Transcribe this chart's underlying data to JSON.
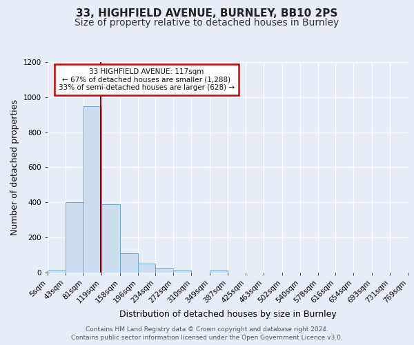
{
  "title": "33, HIGHFIELD AVENUE, BURNLEY, BB10 2PS",
  "subtitle": "Size of property relative to detached houses in Burnley",
  "xlabel": "Distribution of detached houses by size in Burnley",
  "ylabel": "Number of detached properties",
  "footer_line1": "Contains HM Land Registry data © Crown copyright and database right 2024.",
  "footer_line2": "Contains public sector information licensed under the Open Government Licence v3.0.",
  "bin_labels": [
    "5sqm",
    "43sqm",
    "81sqm",
    "119sqm",
    "158sqm",
    "196sqm",
    "234sqm",
    "272sqm",
    "310sqm",
    "349sqm",
    "387sqm",
    "425sqm",
    "463sqm",
    "502sqm",
    "540sqm",
    "578sqm",
    "616sqm",
    "654sqm",
    "693sqm",
    "731sqm",
    "769sqm"
  ],
  "bar_heights": [
    10,
    400,
    950,
    390,
    110,
    50,
    25,
    10,
    0,
    10,
    0,
    0,
    0,
    0,
    0,
    0,
    0,
    0,
    0,
    0
  ],
  "bar_color": "#ccddf0",
  "bar_edge_color": "#6aaad4",
  "vline_x": 117,
  "vline_color": "#990000",
  "annotation_text": "33 HIGHFIELD AVENUE: 117sqm\n← 67% of detached houses are smaller (1,288)\n33% of semi-detached houses are larger (628) →",
  "annotation_box_color": "#ffffff",
  "annotation_box_edge_color": "#cc0000",
  "ylim": [
    0,
    1200
  ],
  "yticks": [
    0,
    200,
    400,
    600,
    800,
    1000,
    1200
  ],
  "bg_color": "#e8eef8",
  "plot_bg_color": "#e8eef8",
  "title_fontsize": 11,
  "subtitle_fontsize": 10,
  "axis_label_fontsize": 9,
  "tick_fontsize": 7.5,
  "footer_fontsize": 6.5
}
